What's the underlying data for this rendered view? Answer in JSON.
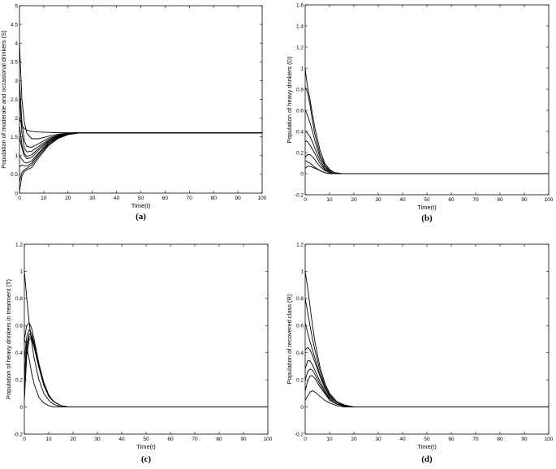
{
  "chart_data": [
    {
      "type": "line",
      "panel_label": "(a)",
      "xlabel": "Time(t)",
      "ylabel": "Population of moderate and occasional drinkers (S)",
      "xlim": [
        0,
        100
      ],
      "ylim": [
        0,
        5
      ],
      "xticks": [
        0,
        10,
        20,
        30,
        40,
        50,
        60,
        70,
        80,
        90,
        100
      ],
      "yticks": [
        0,
        0.5,
        1,
        1.5,
        2,
        2.5,
        3,
        3.5,
        4,
        4.5,
        5
      ],
      "xtick_labels": [
        "0",
        "10",
        "20",
        "30",
        "40",
        "50",
        "60",
        "70",
        "80",
        "90",
        "100"
      ],
      "ytick_labels": [
        "0",
        "0.5",
        "1",
        "1.5",
        "2",
        "2.5",
        "3",
        "3.5",
        "4",
        "4.5",
        "5"
      ],
      "grid": false,
      "color": "#000000",
      "series": [
        {
          "x": [
            0,
            1,
            2,
            3,
            5,
            8,
            12,
            16,
            20,
            25,
            100
          ],
          "y": [
            4.0,
            2.5,
            1.9,
            1.6,
            1.45,
            1.45,
            1.52,
            1.57,
            1.6,
            1.61,
            1.61
          ]
        },
        {
          "x": [
            0,
            1,
            2,
            3,
            5,
            8,
            12,
            16,
            20,
            25,
            100
          ],
          "y": [
            3.0,
            1.9,
            1.4,
            1.25,
            1.22,
            1.32,
            1.47,
            1.55,
            1.59,
            1.61,
            1.61
          ]
        },
        {
          "x": [
            0,
            1,
            2,
            3,
            5,
            8,
            12,
            16,
            20,
            25,
            100
          ],
          "y": [
            2.6,
            1.6,
            1.2,
            1.1,
            1.12,
            1.25,
            1.43,
            1.54,
            1.59,
            1.61,
            1.61
          ]
        },
        {
          "x": [
            0,
            1,
            2,
            3,
            5,
            8,
            12,
            16,
            20,
            25,
            100
          ],
          "y": [
            2.0,
            1.8,
            1.72,
            1.68,
            1.65,
            1.63,
            1.62,
            1.61,
            1.61,
            1.61,
            1.61
          ]
        },
        {
          "x": [
            0,
            1,
            2,
            3,
            5,
            8,
            12,
            16,
            20,
            25,
            100
          ],
          "y": [
            1.8,
            1.3,
            1.05,
            0.98,
            1.02,
            1.2,
            1.4,
            1.53,
            1.58,
            1.61,
            1.61
          ]
        },
        {
          "x": [
            0,
            1,
            2,
            3,
            5,
            8,
            12,
            16,
            20,
            25,
            100
          ],
          "y": [
            1.5,
            1.2,
            1.0,
            0.92,
            0.95,
            1.15,
            1.38,
            1.52,
            1.58,
            1.61,
            1.61
          ]
        },
        {
          "x": [
            0,
            1,
            2,
            3,
            5,
            8,
            12,
            16,
            20,
            25,
            100
          ],
          "y": [
            1.0,
            0.9,
            0.82,
            0.8,
            0.86,
            1.08,
            1.35,
            1.5,
            1.57,
            1.61,
            1.61
          ]
        },
        {
          "x": [
            0,
            1,
            2,
            3,
            5,
            8,
            12,
            16,
            20,
            25,
            100
          ],
          "y": [
            0.7,
            0.75,
            0.73,
            0.72,
            0.8,
            1.05,
            1.33,
            1.49,
            1.57,
            1.61,
            1.61
          ]
        },
        {
          "x": [
            0,
            1,
            2,
            3,
            5,
            8,
            12,
            16,
            20,
            25,
            100
          ],
          "y": [
            0.3,
            0.55,
            0.62,
            0.66,
            0.75,
            1.0,
            1.3,
            1.48,
            1.57,
            1.61,
            1.61
          ]
        },
        {
          "x": [
            0,
            1,
            2,
            3,
            5,
            8,
            12,
            16,
            20,
            25,
            100
          ],
          "y": [
            0.05,
            0.45,
            0.58,
            0.62,
            0.68,
            0.95,
            1.27,
            1.46,
            1.56,
            1.61,
            1.61
          ]
        }
      ]
    },
    {
      "type": "line",
      "panel_label": "(b)",
      "xlabel": "Time(t)",
      "ylabel": "Population of heavy drinkers (D)",
      "xlim": [
        0,
        100
      ],
      "ylim": [
        -0.2,
        1.6
      ],
      "xticks": [
        0,
        10,
        20,
        30,
        40,
        50,
        60,
        70,
        80,
        90,
        100
      ],
      "yticks": [
        -0.2,
        0,
        0.2,
        0.4,
        0.6,
        0.8,
        1,
        1.2,
        1.4,
        1.6
      ],
      "xtick_labels": [
        "0",
        "10",
        "20",
        "30",
        "40",
        "50",
        "60",
        "70",
        "80",
        "90",
        "100"
      ],
      "ytick_labels": [
        "-0.2",
        "0",
        "0.2",
        "0.4",
        "0.6",
        "0.8",
        "1",
        "1.2",
        "1.4",
        "1.6"
      ],
      "grid": false,
      "color": "#000000",
      "series": [
        {
          "x": [
            0,
            0.5,
            1,
            2,
            3,
            4,
            6,
            8,
            10,
            12,
            15,
            100
          ],
          "y": [
            1.0,
            0.9,
            0.82,
            0.7,
            0.56,
            0.43,
            0.23,
            0.1,
            0.04,
            0.01,
            0.0,
            0.0
          ]
        },
        {
          "x": [
            0,
            0.5,
            1,
            2,
            3,
            4,
            6,
            8,
            10,
            12,
            15,
            100
          ],
          "y": [
            0.82,
            0.8,
            0.76,
            0.65,
            0.5,
            0.37,
            0.19,
            0.08,
            0.03,
            0.01,
            0.0,
            0.0
          ]
        },
        {
          "x": [
            0,
            0.5,
            1,
            2,
            3,
            4,
            6,
            8,
            10,
            12,
            15,
            100
          ],
          "y": [
            0.6,
            0.58,
            0.55,
            0.48,
            0.4,
            0.31,
            0.16,
            0.07,
            0.02,
            0.0,
            0.0,
            0.0
          ]
        },
        {
          "x": [
            0,
            0.5,
            1,
            2,
            3,
            4,
            6,
            8,
            10,
            12,
            15,
            100
          ],
          "y": [
            0.4,
            0.4,
            0.38,
            0.35,
            0.3,
            0.24,
            0.13,
            0.05,
            0.02,
            0.0,
            0.0,
            0.0
          ]
        },
        {
          "x": [
            0,
            0.5,
            1,
            2,
            3,
            4,
            6,
            8,
            10,
            12,
            15,
            100
          ],
          "y": [
            0.3,
            0.31,
            0.3,
            0.27,
            0.23,
            0.19,
            0.1,
            0.04,
            0.01,
            0.0,
            0.0,
            0.0
          ]
        },
        {
          "x": [
            0,
            0.5,
            1,
            2,
            3,
            4,
            6,
            8,
            10,
            12,
            15,
            100
          ],
          "y": [
            0.15,
            0.17,
            0.18,
            0.18,
            0.16,
            0.13,
            0.07,
            0.03,
            0.01,
            0.0,
            0.0,
            0.0
          ]
        },
        {
          "x": [
            0,
            0.5,
            1,
            2,
            3,
            4,
            6,
            8,
            10,
            12,
            15,
            100
          ],
          "y": [
            0.12,
            0.12,
            0.11,
            0.1,
            0.08,
            0.06,
            0.03,
            0.01,
            0.0,
            0.0,
            0.0,
            0.0
          ]
        },
        {
          "x": [
            0,
            0.5,
            1,
            2,
            3,
            4,
            6,
            8,
            10,
            12,
            15,
            100
          ],
          "y": [
            0.05,
            0.06,
            0.07,
            0.07,
            0.06,
            0.05,
            0.03,
            0.01,
            0.0,
            0.0,
            0.0,
            0.0
          ]
        }
      ]
    },
    {
      "type": "line",
      "panel_label": "(c)",
      "xlabel": "Time(t)",
      "ylabel": "Population of heavy drinkers in treatment (T)",
      "xlim": [
        0,
        100
      ],
      "ylim": [
        -0.2,
        1.2
      ],
      "xticks": [
        0,
        10,
        20,
        30,
        40,
        50,
        60,
        70,
        80,
        90,
        100
      ],
      "yticks": [
        -0.2,
        0,
        0.2,
        0.4,
        0.6,
        0.8,
        1,
        1.2
      ],
      "xtick_labels": [
        "0",
        "10",
        "20",
        "30",
        "40",
        "50",
        "60",
        "70",
        "80",
        "90",
        "100"
      ],
      "ytick_labels": [
        "-0.2",
        "0",
        "0.2",
        "0.4",
        "0.6",
        "0.8",
        "1",
        "1.2"
      ],
      "grid": false,
      "color": "#000000",
      "series": [
        {
          "x": [
            0,
            1,
            2,
            3,
            4,
            6,
            8,
            10,
            12,
            15,
            18,
            100
          ],
          "y": [
            1.0,
            0.8,
            0.62,
            0.48,
            0.36,
            0.2,
            0.1,
            0.05,
            0.02,
            0.0,
            0.0,
            0.0
          ]
        },
        {
          "x": [
            0,
            1,
            2,
            3,
            4,
            6,
            8,
            10,
            12,
            15,
            18,
            100
          ],
          "y": [
            0.5,
            0.6,
            0.62,
            0.58,
            0.5,
            0.32,
            0.18,
            0.09,
            0.04,
            0.01,
            0.0,
            0.0
          ]
        },
        {
          "x": [
            0,
            1,
            2,
            3,
            4,
            6,
            8,
            10,
            12,
            15,
            18,
            100
          ],
          "y": [
            0.35,
            0.52,
            0.57,
            0.54,
            0.47,
            0.3,
            0.17,
            0.08,
            0.04,
            0.01,
            0.0,
            0.0
          ]
        },
        {
          "x": [
            0,
            1,
            2,
            3,
            4,
            6,
            8,
            10,
            12,
            15,
            18,
            100
          ],
          "y": [
            0.25,
            0.47,
            0.54,
            0.52,
            0.46,
            0.3,
            0.17,
            0.08,
            0.04,
            0.01,
            0.0,
            0.0
          ]
        },
        {
          "x": [
            0,
            1,
            2,
            3,
            4,
            6,
            8,
            10,
            12,
            15,
            18,
            100
          ],
          "y": [
            0.15,
            0.43,
            0.52,
            0.51,
            0.45,
            0.29,
            0.16,
            0.08,
            0.04,
            0.01,
            0.0,
            0.0
          ]
        },
        {
          "x": [
            0,
            1,
            2,
            3,
            4,
            6,
            8,
            10,
            12,
            15,
            18,
            100
          ],
          "y": [
            0.05,
            0.38,
            0.5,
            0.5,
            0.44,
            0.29,
            0.16,
            0.08,
            0.04,
            0.01,
            0.0,
            0.0
          ]
        },
        {
          "x": [
            0,
            1,
            2,
            3,
            4,
            6,
            8,
            10,
            12,
            15,
            18,
            100
          ],
          "y": [
            0.5,
            0.45,
            0.35,
            0.25,
            0.17,
            0.07,
            0.03,
            0.01,
            0.0,
            0.0,
            0.0,
            0.0
          ]
        }
      ]
    },
    {
      "type": "line",
      "panel_label": "(d)",
      "xlabel": "Time(t)",
      "ylabel": "Population of recovered class (R)",
      "xlim": [
        0,
        100
      ],
      "ylim": [
        -0.2,
        1.2
      ],
      "xticks": [
        0,
        10,
        20,
        30,
        40,
        50,
        60,
        70,
        80,
        90,
        100
      ],
      "yticks": [
        -0.2,
        0,
        0.2,
        0.4,
        0.6,
        0.8,
        1,
        1.2
      ],
      "xtick_labels": [
        "0",
        "10",
        "20",
        "30",
        "40",
        "50",
        "60",
        "70",
        "80",
        "90",
        "100"
      ],
      "ytick_labels": [
        "-0.2",
        "0",
        "0.2",
        "0.4",
        "0.6",
        "0.8",
        "1",
        "1.2"
      ],
      "grid": false,
      "color": "#000000",
      "series": [
        {
          "x": [
            0,
            1,
            2,
            3,
            4,
            6,
            8,
            10,
            13,
            16,
            20,
            25,
            100
          ],
          "y": [
            1.0,
            0.88,
            0.74,
            0.6,
            0.48,
            0.3,
            0.18,
            0.1,
            0.04,
            0.015,
            0.0,
            0.0,
            0.0
          ]
        },
        {
          "x": [
            0,
            1,
            2,
            3,
            4,
            6,
            8,
            10,
            13,
            16,
            20,
            25,
            100
          ],
          "y": [
            0.8,
            0.7,
            0.6,
            0.5,
            0.42,
            0.27,
            0.16,
            0.09,
            0.04,
            0.015,
            0.0,
            0.0,
            0.0
          ]
        },
        {
          "x": [
            0,
            1,
            2,
            3,
            4,
            6,
            8,
            10,
            13,
            16,
            20,
            25,
            100
          ],
          "y": [
            0.62,
            0.55,
            0.48,
            0.42,
            0.36,
            0.24,
            0.15,
            0.08,
            0.03,
            0.01,
            0.0,
            0.0,
            0.0
          ]
        },
        {
          "x": [
            0,
            1,
            2,
            3,
            4,
            6,
            8,
            10,
            13,
            16,
            20,
            25,
            100
          ],
          "y": [
            0.42,
            0.44,
            0.42,
            0.38,
            0.33,
            0.23,
            0.14,
            0.08,
            0.03,
            0.01,
            0.0,
            0.0,
            0.0
          ]
        },
        {
          "x": [
            0,
            1,
            2,
            3,
            4,
            6,
            8,
            10,
            13,
            16,
            20,
            25,
            100
          ],
          "y": [
            0.28,
            0.34,
            0.34,
            0.31,
            0.27,
            0.19,
            0.12,
            0.07,
            0.03,
            0.01,
            0.0,
            0.0,
            0.0
          ]
        },
        {
          "x": [
            0,
            1,
            2,
            3,
            4,
            6,
            8,
            10,
            13,
            16,
            20,
            25,
            100
          ],
          "y": [
            0.2,
            0.26,
            0.28,
            0.27,
            0.24,
            0.17,
            0.11,
            0.06,
            0.02,
            0.01,
            0.0,
            0.0,
            0.0
          ]
        },
        {
          "x": [
            0,
            1,
            2,
            3,
            4,
            6,
            8,
            10,
            13,
            16,
            20,
            25,
            100
          ],
          "y": [
            0.12,
            0.19,
            0.23,
            0.23,
            0.21,
            0.15,
            0.1,
            0.05,
            0.02,
            0.005,
            0.0,
            0.0,
            0.0
          ]
        },
        {
          "x": [
            0,
            1,
            2,
            3,
            4,
            6,
            8,
            10,
            13,
            16,
            20,
            25,
            100
          ],
          "y": [
            0.05,
            0.08,
            0.11,
            0.12,
            0.11,
            0.08,
            0.05,
            0.03,
            0.01,
            0.0,
            0.0,
            0.0,
            0.0
          ]
        }
      ]
    }
  ]
}
